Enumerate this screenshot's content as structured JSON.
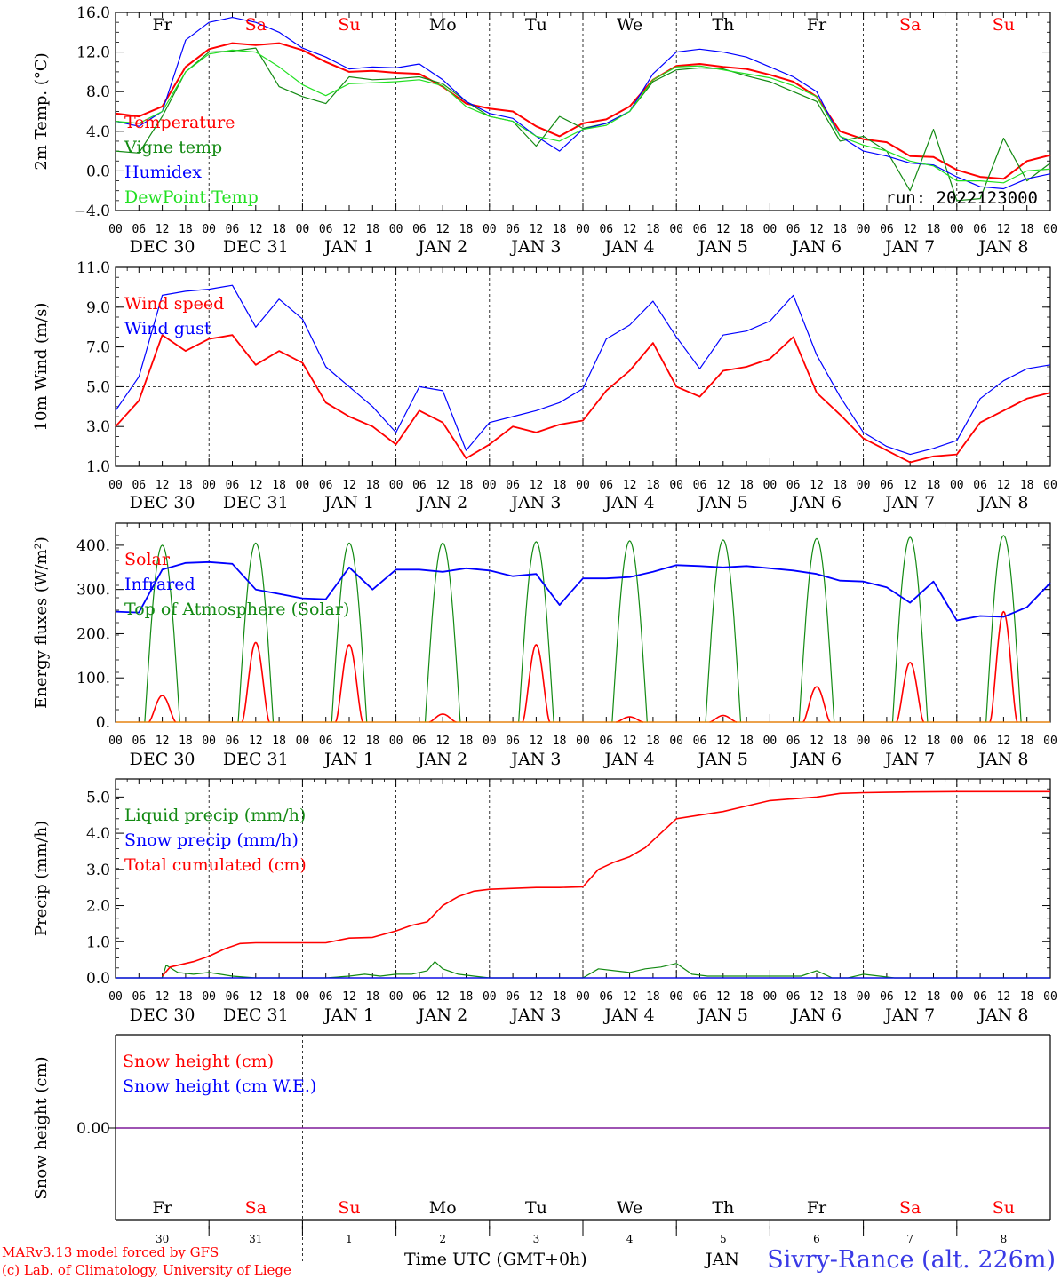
{
  "run_label": "run: 2022123000",
  "footer": {
    "model": "MARv3.13 model forced by GFS",
    "lab": "(c) Lab. of Climatology, University of Liege",
    "xaxis_title": "Time UTC (GMT+0h)",
    "month_stub": "JAN",
    "station": "Sivry-Rance (alt. 226m)"
  },
  "time_axis": {
    "hour_ticks": [
      "00",
      "06",
      "12",
      "18"
    ],
    "date_labels": [
      "DEC 30",
      "DEC 31",
      "JAN  1",
      "JAN  2",
      "JAN  3",
      "JAN  4",
      "JAN  5",
      "JAN  6",
      "JAN  7",
      "JAN  8"
    ],
    "weekdays": [
      "Fr",
      "Sa",
      "Su",
      "Mo",
      "Tu",
      "We",
      "Th",
      "Fr",
      "Sa",
      "Su"
    ],
    "weekday_colors": [
      "#000000",
      "#ff0000",
      "#ff0000",
      "#000000",
      "#000000",
      "#000000",
      "#000000",
      "#000000",
      "#ff0000",
      "#ff0000"
    ],
    "day_numbers": [
      "30",
      "31",
      "1",
      "2",
      "3",
      "4",
      "5",
      "6",
      "7",
      "8"
    ]
  },
  "colors": {
    "red": "#ff0000",
    "dark_green": "#138a13",
    "blue": "#0000ff",
    "light_green": "#22e022",
    "purple": "#7f1a9a"
  },
  "chart_data": [
    {
      "type": "line",
      "ylabel": "2m Temp. (°C)",
      "ylim": [
        -4,
        16
      ],
      "yticks": [
        "16.0",
        "12.0",
        "8.0",
        "4.0",
        "0.0",
        "−4.0"
      ],
      "x_unit": "hours since DEC 30 00 UTC",
      "series": [
        {
          "name": "Temperature",
          "color": "red",
          "x": [
            0,
            6,
            12,
            18,
            24,
            30,
            36,
            42,
            48,
            54,
            60,
            66,
            72,
            78,
            84,
            90,
            96,
            102,
            108,
            114,
            120,
            126,
            132,
            138,
            144,
            150,
            156,
            162,
            168,
            174,
            180,
            186,
            192,
            198,
            204,
            210,
            216,
            222,
            228,
            234,
            240
          ],
          "y": [
            5.8,
            5.5,
            6.5,
            10.5,
            12.3,
            12.9,
            12.7,
            12.9,
            12.2,
            11.0,
            10.0,
            10.1,
            9.9,
            9.8,
            8.5,
            6.8,
            6.3,
            6.0,
            4.5,
            3.5,
            4.8,
            5.2,
            6.5,
            9.2,
            10.6,
            10.8,
            10.5,
            10.3,
            9.7,
            9.0,
            7.5,
            4.0,
            3.2,
            2.9,
            1.5,
            1.4,
            0.1,
            -0.6,
            -0.8,
            1.0,
            1.6
          ]
        },
        {
          "name": "Vigne temp",
          "color": "dark_green",
          "x": [
            0,
            6,
            12,
            18,
            24,
            30,
            36,
            42,
            48,
            54,
            60,
            66,
            72,
            78,
            84,
            90,
            96,
            102,
            108,
            114,
            120,
            126,
            132,
            138,
            144,
            150,
            156,
            162,
            168,
            174,
            180,
            186,
            192,
            198,
            204,
            210,
            216,
            222,
            228,
            234,
            240
          ],
          "y": [
            2.0,
            1.8,
            5.5,
            10.0,
            12.0,
            12.1,
            12.4,
            8.5,
            7.5,
            6.8,
            9.5,
            9.2,
            9.3,
            9.5,
            8.8,
            7.0,
            5.5,
            5.0,
            2.5,
            5.5,
            4.3,
            4.8,
            6.0,
            9.0,
            10.2,
            10.4,
            10.3,
            9.6,
            9.0,
            8.0,
            7.0,
            3.0,
            3.5,
            2.0,
            -2.0,
            4.2,
            -3.0,
            -2.8,
            3.3,
            -1.0,
            0.8
          ]
        },
        {
          "name": "Humidex",
          "color": "blue",
          "x": [
            0,
            6,
            12,
            18,
            24,
            30,
            36,
            42,
            48,
            54,
            60,
            66,
            72,
            78,
            84,
            90,
            96,
            102,
            108,
            114,
            120,
            126,
            132,
            138,
            144,
            150,
            156,
            162,
            168,
            174,
            180,
            186,
            192,
            198,
            204,
            210,
            216,
            222,
            228,
            234,
            240
          ],
          "y": [
            5.0,
            4.5,
            6.0,
            13.2,
            15.0,
            15.5,
            15.0,
            14.0,
            12.4,
            11.5,
            10.3,
            10.5,
            10.4,
            10.8,
            9.2,
            7.0,
            5.8,
            5.3,
            3.5,
            2.0,
            4.2,
            4.8,
            6.0,
            9.8,
            12.0,
            12.3,
            12.0,
            11.5,
            10.5,
            9.5,
            8.0,
            3.5,
            2.0,
            1.5,
            0.8,
            0.6,
            -0.6,
            -1.6,
            -1.8,
            -0.8,
            -0.3
          ]
        },
        {
          "name": "DewPoint Temp",
          "color": "light_green",
          "x": [
            0,
            6,
            12,
            18,
            24,
            30,
            36,
            42,
            48,
            54,
            60,
            66,
            72,
            78,
            84,
            90,
            96,
            102,
            108,
            114,
            120,
            126,
            132,
            138,
            144,
            150,
            156,
            162,
            168,
            174,
            180,
            186,
            192,
            198,
            204,
            210,
            216,
            222,
            228,
            234,
            240
          ],
          "y": [
            5.0,
            4.8,
            6.0,
            10.0,
            11.8,
            12.2,
            12.0,
            10.5,
            8.7,
            7.6,
            8.8,
            8.9,
            9.0,
            9.2,
            8.6,
            6.5,
            5.5,
            5.0,
            3.5,
            3.0,
            4.2,
            4.6,
            6.0,
            9.2,
            10.5,
            10.6,
            10.2,
            9.8,
            9.4,
            8.6,
            7.5,
            3.5,
            2.6,
            2.0,
            1.0,
            0.5,
            -1.0,
            -1.0,
            -1.2,
            0.0,
            0.2
          ]
        }
      ]
    },
    {
      "type": "line",
      "ylabel": "10m Wind (m/s)",
      "ylim": [
        1,
        11
      ],
      "yticks": [
        "11.0",
        "9.0",
        "7.0",
        "5.0",
        "3.0",
        "1.0"
      ],
      "x_unit": "hours since DEC 30 00 UTC",
      "series": [
        {
          "name": "Wind speed",
          "color": "red",
          "x": [
            0,
            6,
            12,
            18,
            24,
            30,
            36,
            42,
            48,
            54,
            60,
            66,
            72,
            78,
            84,
            90,
            96,
            102,
            108,
            114,
            120,
            126,
            132,
            138,
            144,
            150,
            156,
            162,
            168,
            174,
            180,
            186,
            192,
            198,
            204,
            210,
            216,
            222,
            228,
            234,
            240
          ],
          "y": [
            3.0,
            4.3,
            7.6,
            6.8,
            7.4,
            7.6,
            6.1,
            6.8,
            6.2,
            4.2,
            3.5,
            3.0,
            2.1,
            3.8,
            3.2,
            1.4,
            2.1,
            3.0,
            2.7,
            3.1,
            3.3,
            4.8,
            5.8,
            7.2,
            5.0,
            4.5,
            5.8,
            6.0,
            6.4,
            7.5,
            4.7,
            3.6,
            2.4,
            1.8,
            1.2,
            1.5,
            1.6,
            3.2,
            3.8,
            4.4,
            4.7
          ]
        },
        {
          "name": "Wind gust",
          "color": "blue",
          "x": [
            0,
            6,
            12,
            18,
            24,
            30,
            36,
            42,
            48,
            54,
            60,
            66,
            72,
            78,
            84,
            90,
            96,
            102,
            108,
            114,
            120,
            126,
            132,
            138,
            144,
            150,
            156,
            162,
            168,
            174,
            180,
            186,
            192,
            198,
            204,
            210,
            216,
            222,
            228,
            234,
            240
          ],
          "y": [
            3.8,
            5.5,
            9.6,
            9.8,
            9.9,
            10.1,
            8.0,
            9.4,
            8.4,
            6.0,
            5.0,
            4.0,
            2.7,
            5.0,
            4.8,
            1.8,
            3.2,
            3.5,
            3.8,
            4.2,
            4.9,
            7.4,
            8.1,
            9.3,
            7.5,
            5.9,
            7.6,
            7.8,
            8.3,
            9.6,
            6.6,
            4.5,
            2.7,
            2.0,
            1.6,
            1.9,
            2.3,
            4.4,
            5.3,
            5.9,
            6.1
          ]
        }
      ]
    },
    {
      "type": "line",
      "ylabel": "Energy fluxes (W/m²)",
      "ylim": [
        0,
        450
      ],
      "yticks": [
        "400.",
        "300.",
        "200.",
        "100.",
        "0."
      ],
      "x_unit": "hours since DEC 30 00 UTC",
      "solar_peaks": [
        60,
        180,
        175,
        18,
        175,
        12,
        15,
        80,
        135,
        250
      ],
      "toa_peak": [
        400,
        405,
        405,
        405,
        408,
        410,
        412,
        415,
        418,
        422
      ],
      "series": [
        {
          "name": "Solar",
          "color": "red"
        },
        {
          "name": "Infrared",
          "color": "blue",
          "x": [
            0,
            6,
            12,
            18,
            24,
            30,
            36,
            42,
            48,
            54,
            60,
            66,
            72,
            78,
            84,
            90,
            96,
            102,
            108,
            114,
            120,
            126,
            132,
            138,
            144,
            150,
            156,
            162,
            168,
            174,
            180,
            186,
            192,
            198,
            204,
            210,
            216,
            222,
            228,
            234,
            240
          ],
          "y": [
            250,
            248,
            345,
            360,
            362,
            358,
            300,
            290,
            280,
            278,
            350,
            300,
            345,
            345,
            340,
            348,
            343,
            330,
            335,
            265,
            325,
            325,
            328,
            340,
            355,
            353,
            350,
            353,
            348,
            343,
            335,
            320,
            318,
            305,
            270,
            318,
            230,
            240,
            238,
            260,
            315
          ]
        },
        {
          "name": "Top of Atmosphere (Solar)",
          "color": "dark_green"
        }
      ]
    },
    {
      "type": "line",
      "ylabel": "Precip (mm/h)",
      "ylim": [
        0,
        5.5
      ],
      "yticks": [
        "5.0",
        "4.0",
        "3.0",
        "2.0",
        "1.0",
        "0.0"
      ],
      "x_unit": "hours since DEC 30 00 UTC",
      "series": [
        {
          "name": "Liquid precip (mm/h)",
          "color": "dark_green",
          "x": [
            0,
            12,
            13,
            16,
            20,
            24,
            30,
            36,
            48,
            54,
            60,
            64,
            68,
            72,
            76,
            80,
            82,
            84,
            88,
            92,
            96,
            100,
            108,
            120,
            124,
            128,
            132,
            136,
            140,
            144,
            148,
            152,
            160,
            168,
            176,
            180,
            184,
            188,
            192,
            200,
            210,
            220,
            230,
            240
          ],
          "y": [
            0,
            0,
            0.35,
            0.15,
            0.1,
            0.15,
            0.05,
            0,
            0,
            0,
            0.05,
            0.1,
            0.05,
            0.1,
            0.1,
            0.2,
            0.45,
            0.25,
            0.1,
            0.05,
            0,
            0,
            0,
            0,
            0.25,
            0.2,
            0.15,
            0.25,
            0.3,
            0.4,
            0.1,
            0.05,
            0.05,
            0.05,
            0.05,
            0.2,
            0,
            0,
            0.1,
            0,
            0,
            0,
            0,
            0
          ]
        },
        {
          "name": "Snow precip (mm/h)",
          "color": "blue",
          "x": [
            0,
            240
          ],
          "y": [
            0,
            0
          ]
        },
        {
          "name": "Total cumulated (cm)",
          "color": "red",
          "x": [
            12,
            14,
            20,
            24,
            28,
            32,
            36,
            48,
            54,
            60,
            66,
            72,
            76,
            80,
            84,
            88,
            92,
            96,
            108,
            114,
            120,
            124,
            128,
            132,
            136,
            140,
            144,
            150,
            156,
            162,
            168,
            174,
            180,
            186,
            192,
            198,
            204,
            216,
            228,
            240
          ],
          "y": [
            0.05,
            0.3,
            0.45,
            0.6,
            0.8,
            0.95,
            0.97,
            0.97,
            0.97,
            1.1,
            1.12,
            1.3,
            1.45,
            1.55,
            2.0,
            2.25,
            2.4,
            2.45,
            2.5,
            2.5,
            2.52,
            3.0,
            3.2,
            3.35,
            3.6,
            4.0,
            4.4,
            4.5,
            4.6,
            4.75,
            4.9,
            4.95,
            5.0,
            5.1,
            5.12,
            5.13,
            5.14,
            5.15,
            5.15,
            5.15
          ]
        }
      ]
    },
    {
      "type": "line",
      "ylabel": "Snow height (cm)",
      "yticks": [
        "0.00"
      ],
      "series": [
        {
          "name": "Snow height (cm)",
          "color": "red",
          "x": [
            0,
            240
          ],
          "y": [
            0,
            0
          ]
        },
        {
          "name": "Snow height (cm W.E.)",
          "color": "blue",
          "x": [
            0,
            240
          ],
          "y": [
            0,
            0
          ]
        }
      ]
    }
  ]
}
